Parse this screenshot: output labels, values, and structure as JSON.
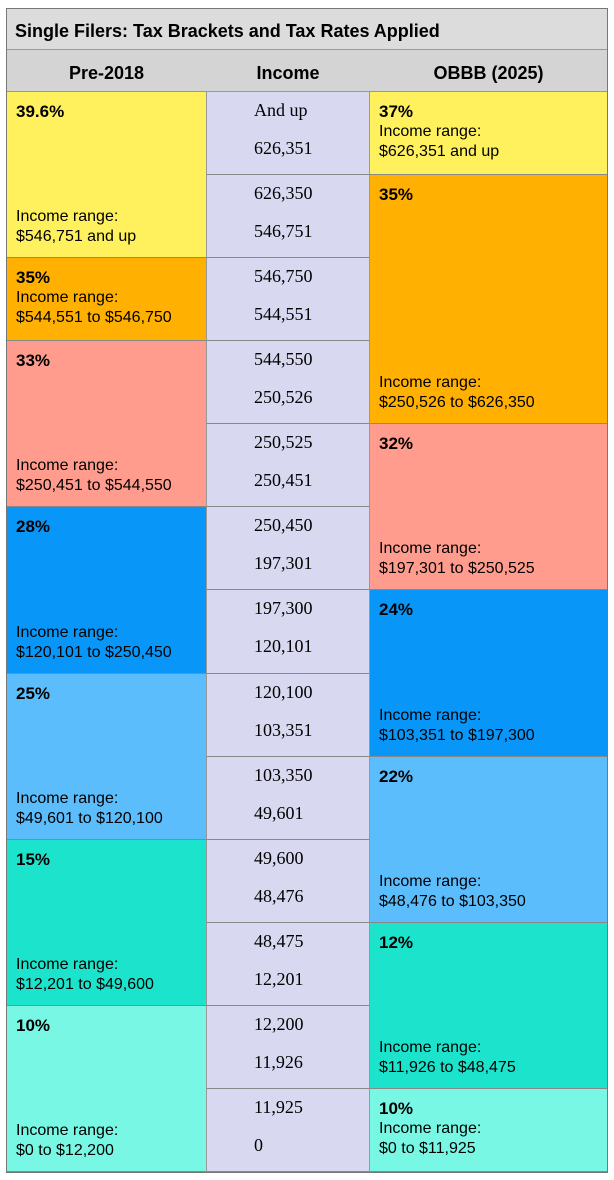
{
  "title": "Single Filers: Tax Brackets and Tax Rates Applied",
  "columns": [
    "Pre-2018",
    "Income",
    "OBBB (2025)"
  ],
  "income_rows": [
    [
      "And up",
      "626,351"
    ],
    [
      "626,350",
      "546,751"
    ],
    [
      "546,750",
      "544,551"
    ],
    [
      "544,550",
      "250,526"
    ],
    [
      "250,525",
      "250,451"
    ],
    [
      "250,450",
      "197,301"
    ],
    [
      "197,300",
      "120,101"
    ],
    [
      "120,100",
      "103,351"
    ],
    [
      "103,350",
      "49,601"
    ],
    [
      "49,600",
      "48,476"
    ],
    [
      "48,475",
      "12,201"
    ],
    [
      "12,200",
      "11,926"
    ],
    [
      "11,925",
      "0"
    ]
  ],
  "pre_2018": [
    {
      "rate": "39.6%",
      "range_label": "Income range:",
      "range": "$546,751 and up"
    },
    {
      "rate": "35%",
      "range_label": "Income range:",
      "range": "$544,551 to $546,750"
    },
    {
      "rate": "33%",
      "range_label": "Income range:",
      "range": "$250,451 to $544,550"
    },
    {
      "rate": "28%",
      "range_label": "Income range:",
      "range": "$120,101 to $250,450"
    },
    {
      "rate": "25%",
      "range_label": "Income range:",
      "range": "$49,601 to $120,100"
    },
    {
      "rate": "15%",
      "range_label": "Income range:",
      "range": "$12,201 to $49,600"
    },
    {
      "rate": "10%",
      "range_label": "Income range:",
      "range": "$0 to $12,200"
    }
  ],
  "obbb_2025": [
    {
      "rate": "37%",
      "range_label": "Income range:",
      "range": "$626,351 and up"
    },
    {
      "rate": "35%",
      "range_label": "Income range:",
      "range": "$250,526 to $626,350"
    },
    {
      "rate": "32%",
      "range_label": "Income range:",
      "range": "$197,301 to $250,525"
    },
    {
      "rate": "24%",
      "range_label": "Income range:",
      "range": "$103,351 to $197,300"
    },
    {
      "rate": "22%",
      "range_label": "Income range:",
      "range": "$48,476 to $103,350"
    },
    {
      "rate": "12%",
      "range_label": "Income range:",
      "range": "$11,926 to $48,475"
    },
    {
      "rate": "10%",
      "range_label": "Income range:",
      "range": "$0 to $11,925"
    }
  ]
}
